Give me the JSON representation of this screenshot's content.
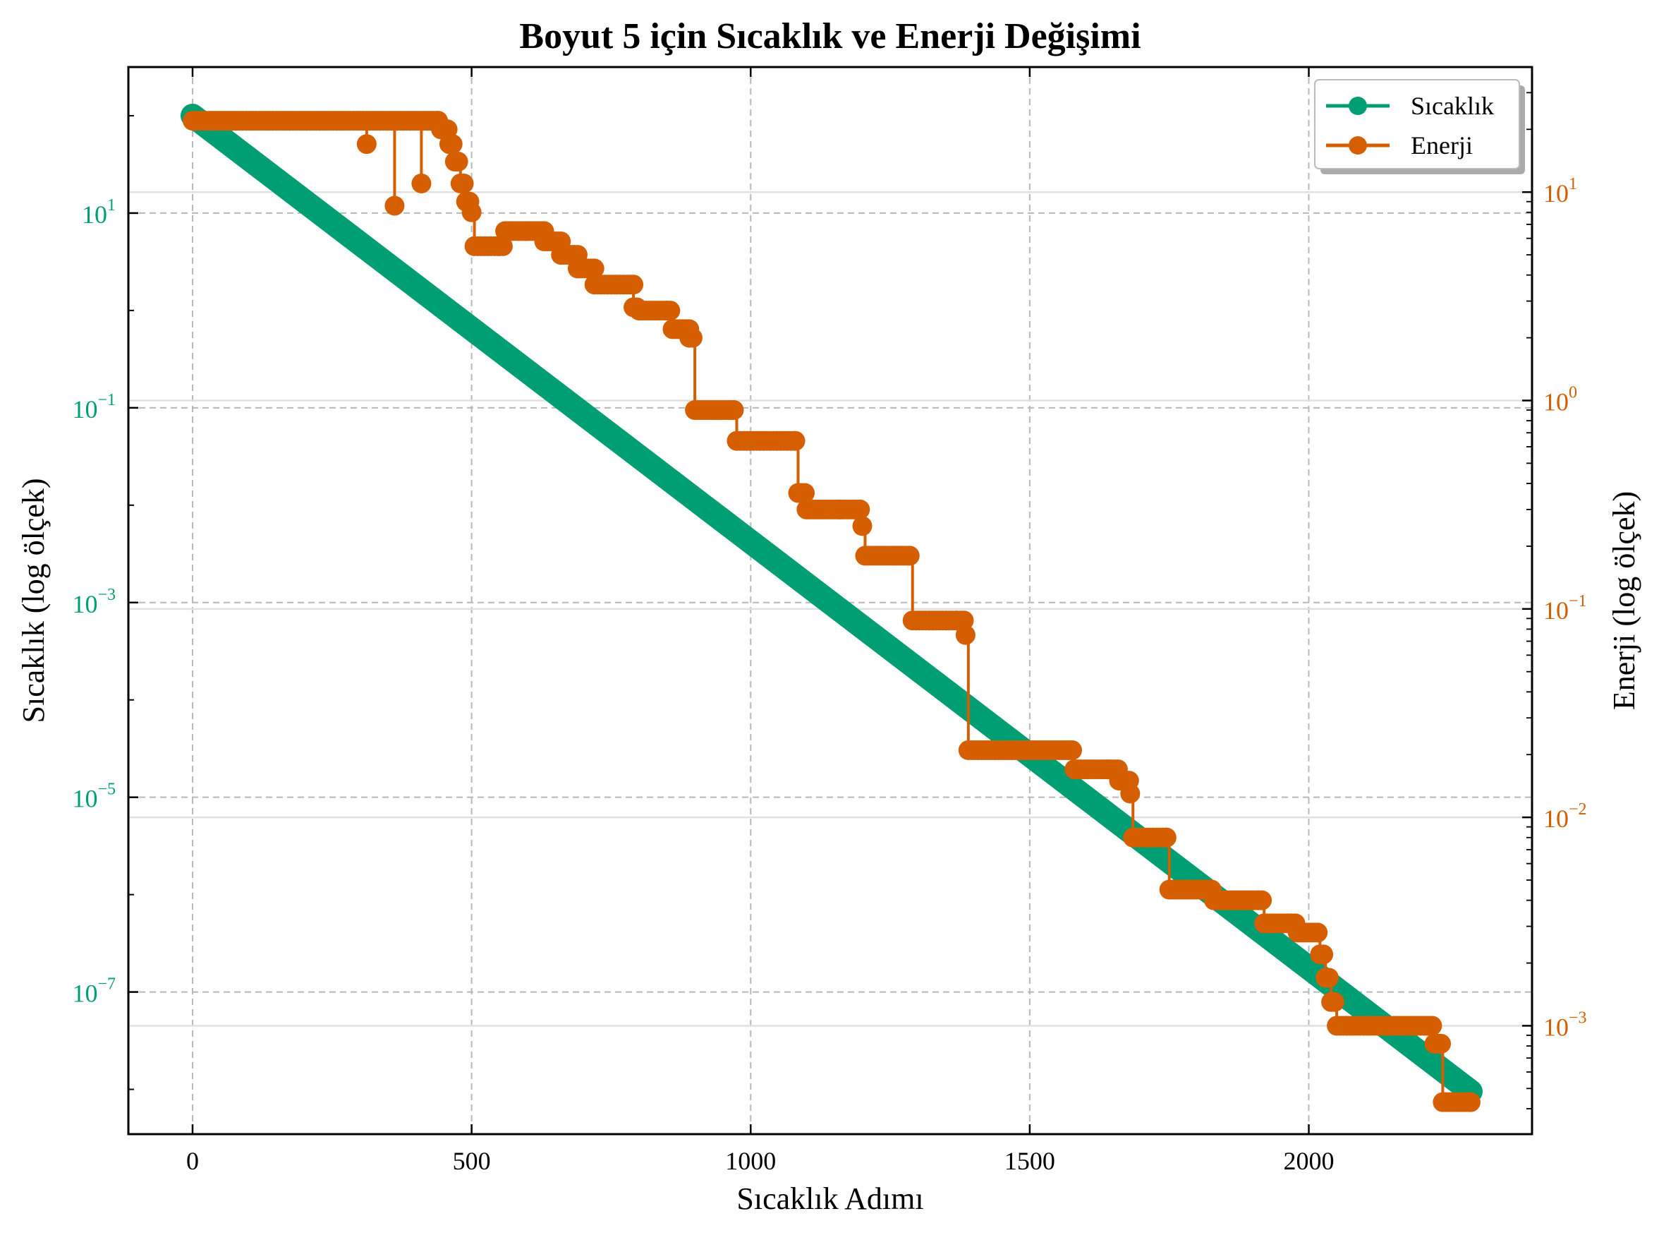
{
  "colors": {
    "sicaklik": "#009E73",
    "enerji": "#D55E00",
    "grid_dashed": "#b8b8b8",
    "grid_solid": "#e0e0e0",
    "axis": "#000000"
  },
  "chart_data": {
    "type": "line",
    "title": "Boyut 5 için Sıcaklık ve Enerji Değişimi",
    "xlabel": "Sıcaklık Adımı",
    "ylabel_left": "Sıcaklık (log ölçek)",
    "ylabel_right": "Enerji (log ölçek)",
    "xlim": [
      -115,
      2400
    ],
    "xticks": [
      0,
      500,
      1000,
      1500,
      2000
    ],
    "xtick_labels": [
      "0",
      "500",
      "1000",
      "1500",
      "2000"
    ],
    "ylim_left_log10": [
      -8.46,
      2.5
    ],
    "yticks_left": [
      {
        "base": "10",
        "exp": "1",
        "log": 1
      },
      {
        "base": "10",
        "exp": "−1",
        "log": -1
      },
      {
        "base": "10",
        "exp": "−3",
        "log": -3
      },
      {
        "base": "10",
        "exp": "−5",
        "log": -5
      },
      {
        "base": "10",
        "exp": "−7",
        "log": -7
      }
    ],
    "ylim_right_log10": [
      -3.52,
      1.6
    ],
    "yticks_right": [
      {
        "base": "10",
        "exp": "1",
        "log": 1
      },
      {
        "base": "10",
        "exp": "0",
        "log": 0
      },
      {
        "base": "10",
        "exp": "−1",
        "log": -1
      },
      {
        "base": "10",
        "exp": "−2",
        "log": -2
      },
      {
        "base": "10",
        "exp": "−3",
        "log": -3
      }
    ],
    "grid": true,
    "legend_position": "top-right",
    "series": [
      {
        "name": "Sıcaklık",
        "axis": "left",
        "scale": "log",
        "x": [
          0,
          2290
        ],
        "y": [
          100,
          9.5e-09
        ]
      },
      {
        "name": "Enerji",
        "axis": "right",
        "scale": "log",
        "x": [
          0,
          440,
          445,
          460,
          470,
          480,
          490,
          500,
          505,
          550,
          560,
          600,
          630,
          660,
          690,
          720,
          760,
          790,
          800,
          850,
          860,
          890,
          900,
          970,
          975,
          1080,
          1085,
          1100,
          1160,
          1200,
          1205,
          1285,
          1290,
          1370,
          1385,
          1390,
          1570,
          1580,
          1640,
          1660,
          1680,
          1685,
          1745,
          1750,
          1820,
          1830,
          1910,
          1920,
          1970,
          1980,
          2020,
          2030,
          2040,
          2050,
          2215,
          2225,
          2240,
          2290
        ],
        "y": [
          22,
          22,
          20,
          17,
          14,
          11,
          9,
          8,
          5.5,
          5.5,
          6.5,
          6.5,
          5.8,
          5,
          4.3,
          3.6,
          3.6,
          2.8,
          2.7,
          2.7,
          2.2,
          2.0,
          0.9,
          0.9,
          0.64,
          0.64,
          0.36,
          0.3,
          0.3,
          0.25,
          0.18,
          0.18,
          0.088,
          0.088,
          0.075,
          0.021,
          0.021,
          0.017,
          0.017,
          0.015,
          0.013,
          0.008,
          0.008,
          0.0045,
          0.0045,
          0.004,
          0.004,
          0.0031,
          0.0031,
          0.0028,
          0.0022,
          0.0017,
          0.0013,
          0.001,
          0.001,
          0.00082,
          0.00043,
          0.00043
        ]
      }
    ],
    "enerji_outliers": [
      {
        "x": 312,
        "y": 17
      },
      {
        "x": 362,
        "y": 8.6
      },
      {
        "x": 410,
        "y": 11
      }
    ]
  }
}
